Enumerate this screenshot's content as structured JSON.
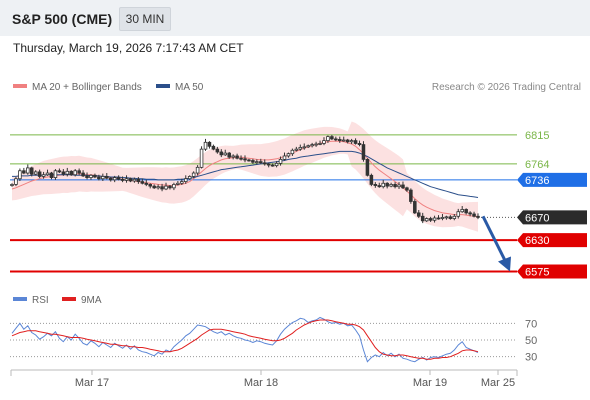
{
  "header": {
    "title": "S&P 500 (CME)",
    "interval_label": "30 MIN",
    "datetime": "Thursday, March 19, 2026 7:17:43 AM CET"
  },
  "legend": {
    "items": [
      {
        "label": "MA 20 + Bollinger Bands",
        "color": "#f08080"
      },
      {
        "label": "MA 50",
        "color": "#2b4f8a"
      }
    ],
    "credit": "Research © 2026 Trading Central"
  },
  "rsi_legend": {
    "items": [
      {
        "label": "RSI",
        "color": "#5b86d6"
      },
      {
        "label": "9MA",
        "color": "#e02020"
      }
    ]
  },
  "chart_data": [
    {
      "type": "candlestick",
      "title": "",
      "x_ticks": [
        "Mar 17",
        "Mar 18",
        "Mar 19",
        "Mar 25"
      ],
      "ylim": [
        6560,
        6850
      ],
      "levels": [
        {
          "label": "6815",
          "value": 6815,
          "kind": "resistance",
          "color": "#7ab648"
        },
        {
          "label": "6764",
          "value": 6764,
          "kind": "resistance",
          "color": "#7ab648"
        },
        {
          "label": "6736",
          "value": 6736,
          "kind": "pivot",
          "color": "#1f6fe6"
        },
        {
          "label": "6670",
          "value": 6670,
          "kind": "last",
          "color": "#2b2b2b"
        },
        {
          "label": "6630",
          "value": 6630,
          "kind": "target",
          "color": "#e00000"
        },
        {
          "label": "6575",
          "value": 6575,
          "kind": "target",
          "color": "#e00000"
        }
      ],
      "forecast_arrow": {
        "from": 6672,
        "to": 6575,
        "color": "#2a5aa6"
      },
      "close": [
        6728,
        6738,
        6752,
        6748,
        6757,
        6746,
        6750,
        6742,
        6745,
        6748,
        6740,
        6752,
        6750,
        6746,
        6751,
        6745,
        6752,
        6748,
        6743,
        6740,
        6744,
        6741,
        6738,
        6742,
        6739,
        6736,
        6740,
        6737,
        6735,
        6738,
        6734,
        6737,
        6733,
        6730,
        6728,
        6725,
        6722,
        6724,
        6720,
        6725,
        6722,
        6728,
        6730,
        6733,
        6738,
        6742,
        6748,
        6758,
        6790,
        6802,
        6795,
        6790,
        6785,
        6780,
        6783,
        6776,
        6778,
        6774,
        6773,
        6771,
        6770,
        6767,
        6768,
        6766,
        6764,
        6762,
        6761,
        6765,
        6772,
        6778,
        6782,
        6788,
        6790,
        6793,
        6794,
        6796,
        6798,
        6799,
        6800,
        6805,
        6812,
        6808,
        6807,
        6805,
        6806,
        6803,
        6805,
        6800,
        6798,
        6772,
        6744,
        6728,
        6726,
        6724,
        6730,
        6725,
        6728,
        6724,
        6727,
        6722,
        6718,
        6698,
        6678,
        6672,
        6664,
        6668,
        6665,
        6669,
        6668,
        6670,
        6671,
        6668,
        6672,
        6680,
        6684,
        6678,
        6676,
        6672,
        6670
      ],
      "ma20": [
        6720,
        6722,
        6725,
        6728,
        6731,
        6734,
        6736,
        6738,
        6740,
        6741,
        6742,
        6743,
        6744,
        6745,
        6745,
        6746,
        6746,
        6747,
        6746,
        6745,
        6745,
        6744,
        6743,
        6742,
        6741,
        6740,
        6739,
        6738,
        6737,
        6736,
        6735,
        6734,
        6733,
        6732,
        6731,
        6730,
        6729,
        6728,
        6727,
        6727,
        6726,
        6726,
        6727,
        6728,
        6730,
        6733,
        6738,
        6744,
        6750,
        6756,
        6761,
        6765,
        6768,
        6771,
        6773,
        6774,
        6775,
        6776,
        6776,
        6775,
        6774,
        6773,
        6772,
        6771,
        6771,
        6771,
        6772,
        6773,
        6775,
        6777,
        6780,
        6783,
        6786,
        6789,
        6792,
        6794,
        6796,
        6798,
        6800,
        6802,
        6803,
        6804,
        6804,
        6804,
        6803,
        6801,
        6799,
        6795,
        6789,
        6782,
        6774,
        6766,
        6759,
        6753,
        6748,
        6743,
        6738,
        6733,
        6728,
        6722,
        6716,
        6710,
        6703,
        6697,
        6692,
        6688,
        6685,
        6682,
        6680,
        6678,
        6677,
        6676,
        6675,
        6675,
        6675,
        6674,
        6673,
        6672,
        6671
      ],
      "ma50": [
        6742,
        6742,
        6743,
        6743,
        6743,
        6744,
        6744,
        6744,
        6744,
        6745,
        6745,
        6745,
        6745,
        6745,
        6745,
        6745,
        6744,
        6744,
        6744,
        6744,
        6743,
        6743,
        6743,
        6742,
        6742,
        6741,
        6741,
        6741,
        6740,
        6740,
        6739,
        6739,
        6738,
        6738,
        6737,
        6737,
        6737,
        6736,
        6736,
        6736,
        6736,
        6736,
        6737,
        6737,
        6738,
        6739,
        6740,
        6742,
        6744,
        6746,
        6748,
        6750,
        6752,
        6754,
        6755,
        6756,
        6757,
        6758,
        6759,
        6760,
        6761,
        6762,
        6763,
        6764,
        6765,
        6766,
        6767,
        6768,
        6769,
        6770,
        6772,
        6773,
        6774,
        6776,
        6777,
        6778,
        6779,
        6780,
        6781,
        6782,
        6783,
        6784,
        6785,
        6786,
        6786,
        6786,
        6786,
        6785,
        6783,
        6780,
        6777,
        6773,
        6769,
        6765,
        6761,
        6757,
        6754,
        6751,
        6748,
        6745,
        6742,
        6739,
        6736,
        6733,
        6730,
        6727,
        6724,
        6722,
        6720,
        6718,
        6716,
        6714,
        6712,
        6710,
        6709,
        6708,
        6707,
        6706,
        6705
      ]
    },
    {
      "type": "line",
      "title": "RSI",
      "ylim": [
        20,
        80
      ],
      "y_ticks": [
        70,
        50,
        30
      ],
      "series": [
        {
          "name": "RSI",
          "values": [
            58,
            64,
            70,
            63,
            67,
            59,
            56,
            51,
            54,
            58,
            55,
            60,
            52,
            48,
            54,
            50,
            57,
            52,
            46,
            44,
            49,
            46,
            42,
            47,
            44,
            41,
            46,
            43,
            40,
            44,
            39,
            43,
            38,
            36,
            35,
            33,
            31,
            35,
            33,
            38,
            36,
            42,
            46,
            50,
            55,
            58,
            63,
            68,
            67,
            66,
            63,
            60,
            58,
            60,
            56,
            58,
            55,
            53,
            52,
            50,
            49,
            47,
            49,
            48,
            46,
            45,
            44,
            49,
            57,
            63,
            67,
            71,
            73,
            76,
            75,
            71,
            73,
            74,
            77,
            75,
            72,
            70,
            71,
            69,
            70,
            67,
            68,
            62,
            55,
            38,
            24,
            29,
            32,
            30,
            35,
            31,
            34,
            30,
            33,
            28,
            27,
            25,
            24,
            27,
            29,
            26,
            29,
            30,
            29,
            31,
            33,
            34,
            38,
            44,
            48,
            41,
            39,
            37,
            35
          ]
        },
        {
          "name": "9MA",
          "values": [
            55,
            57,
            59,
            60,
            61,
            61,
            61,
            60,
            59,
            58,
            57,
            57,
            56,
            55,
            54,
            53,
            53,
            53,
            52,
            51,
            50,
            49,
            48,
            47,
            46,
            45,
            45,
            44,
            43,
            43,
            42,
            42,
            41,
            41,
            40,
            39,
            38,
            37,
            36,
            36,
            36,
            37,
            38,
            40,
            43,
            46,
            49,
            52,
            56,
            59,
            62,
            63,
            63,
            63,
            62,
            61,
            60,
            59,
            58,
            57,
            55,
            54,
            53,
            52,
            51,
            50,
            49,
            49,
            50,
            52,
            55,
            58,
            62,
            65,
            68,
            70,
            72,
            73,
            74,
            74,
            74,
            73,
            72,
            71,
            70,
            69,
            69,
            68,
            66,
            62,
            55,
            48,
            41,
            36,
            33,
            32,
            31,
            31,
            32,
            32,
            31,
            30,
            29,
            28,
            28,
            27,
            27,
            28,
            28,
            29,
            29,
            30,
            32,
            34,
            37,
            38,
            38,
            37,
            36
          ]
        }
      ]
    }
  ]
}
